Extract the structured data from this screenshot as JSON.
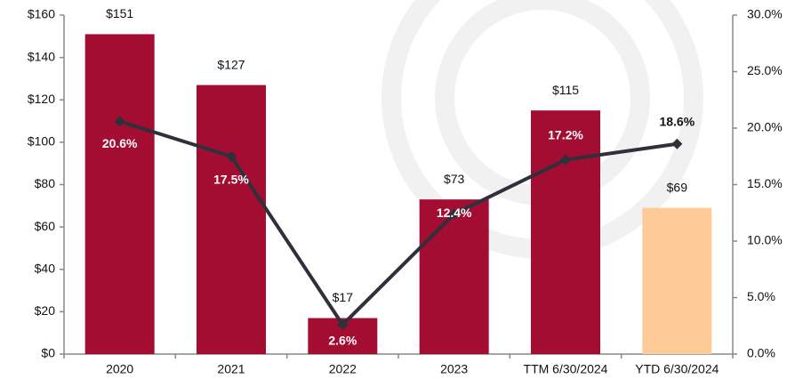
{
  "chart_data": {
    "type": "bar-line",
    "categories": [
      "2020",
      "2021",
      "2022",
      "2023",
      "TTM 6/30/2024",
      "YTD 6/30/2024"
    ],
    "series": [
      {
        "type": "bar",
        "colors": [
          "#a30d32",
          "#a30d32",
          "#a30d32",
          "#a30d32",
          "#a30d32",
          "#fdca98"
        ],
        "values": [
          151,
          127,
          17,
          73,
          115,
          69
        ],
        "value_labels": [
          "$151",
          "$127",
          "$17",
          "$73",
          "$115",
          "$69"
        ]
      },
      {
        "type": "line",
        "axis": "y2",
        "color": "#2e303b",
        "values": [
          20.6,
          17.5,
          2.6,
          12.4,
          17.2,
          18.6
        ],
        "value_labels": [
          "20.6%",
          "17.5%",
          "2.6%",
          "12.4%",
          "17.2%",
          "18.6%"
        ]
      }
    ],
    "ylim": [
      0,
      160
    ],
    "yticks": [
      {
        "value": 0,
        "label": "$0"
      },
      {
        "value": 20,
        "label": "$20"
      },
      {
        "value": 40,
        "label": "$40"
      },
      {
        "value": 60,
        "label": "$60"
      },
      {
        "value": 80,
        "label": "$80"
      },
      {
        "value": 100,
        "label": "$100"
      },
      {
        "value": 120,
        "label": "$120"
      },
      {
        "value": 140,
        "label": "$140"
      },
      {
        "value": 160,
        "label": "$160"
      }
    ],
    "y2lim": [
      0,
      30
    ],
    "y2ticks": [
      {
        "value": 0,
        "label": "0.0%"
      },
      {
        "value": 5,
        "label": "5.0%"
      },
      {
        "value": 10,
        "label": "10.0%"
      },
      {
        "value": 15,
        "label": "15.0%"
      },
      {
        "value": 20,
        "label": "20.0%"
      },
      {
        "value": 25,
        "label": "25.0%"
      },
      {
        "value": 30,
        "label": "30.0%"
      }
    ]
  }
}
